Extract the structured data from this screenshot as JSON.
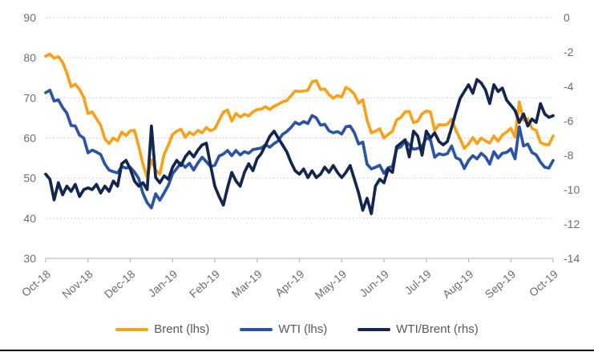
{
  "chart_data": {
    "type": "line",
    "title": "",
    "categories": [
      "Oct-18",
      "Nov-18",
      "Dec-18",
      "Jan-19",
      "Feb-19",
      "Mar-19",
      "Apr-19",
      "May-19",
      "Jun-19",
      "Jul-19",
      "Aug-19",
      "Sep-19",
      "Oct-19"
    ],
    "left_axis": {
      "ticks": [
        30,
        40,
        50,
        60,
        70,
        80,
        90
      ],
      "range": [
        30,
        90
      ]
    },
    "right_axis": {
      "ticks": [
        0,
        -2,
        -4,
        -6,
        -8,
        -10,
        -12,
        -14
      ],
      "range": [
        -14,
        0
      ]
    },
    "grid": "horizontal-dotted",
    "legend_position": "bottom",
    "axis_text_color": "#6e6e6e",
    "grid_color": "#c8c8c8",
    "axis_line_color": "#bfbfbf",
    "series": [
      {
        "name": "Brent (lhs)",
        "axis": "left",
        "color": "#F6A21D",
        "values": [
          80.4,
          80.9,
          79.9,
          80.3,
          78.9,
          76.2,
          72.8,
          73.4,
          72.1,
          70.1,
          66.1,
          66.5,
          64.8,
          63.2,
          59.8,
          58.6,
          60.0,
          59.3,
          61.5,
          60.6,
          61.8,
          61.9,
          57.9,
          53.5,
          50.2,
          54.5,
          52.0,
          51.0,
          55.9,
          58.2,
          60.9,
          61.7,
          62.2,
          60.2,
          61.4,
          60.8,
          61.9,
          61.3,
          62.6,
          61.8,
          62.3,
          64.4,
          66.4,
          67.0,
          64.2,
          66.1,
          65.2,
          65.9,
          65.5,
          66.5,
          67.1,
          67.2,
          67.8,
          67.1,
          67.9,
          68.4,
          69.0,
          69.3,
          70.5,
          71.7,
          71.6,
          71.7,
          71.9,
          74.0,
          74.3,
          72.1,
          72.2,
          70.8,
          69.9,
          70.6,
          70.2,
          72.6,
          72.0,
          70.9,
          68.7,
          69.5,
          64.5,
          61.3,
          61.7,
          62.3,
          60.0,
          60.9,
          61.7,
          64.5,
          65.1,
          66.5,
          66.6,
          63.8,
          64.2,
          66.0,
          66.7,
          66.5,
          61.9,
          63.3,
          63.2,
          63.4,
          64.7,
          61.9,
          59.8,
          57.4,
          58.5,
          60.1,
          58.6,
          60.0,
          59.3,
          58.7,
          60.5,
          59.2,
          60.7,
          61.5,
          62.4,
          60.2,
          69.0,
          64.4,
          64.8,
          62.4,
          61.9,
          58.9,
          58.4,
          58.3,
          60.5
        ]
      },
      {
        "name": "WTI (lhs)",
        "axis": "left",
        "color": "#2D53A5",
        "values": [
          71.3,
          71.9,
          69.2,
          69.5,
          67.6,
          66.2,
          63.1,
          63.0,
          60.7,
          60.0,
          56.3,
          57.0,
          56.5,
          55.9,
          53.5,
          52.0,
          51.6,
          51.3,
          52.9,
          52.5,
          52.7,
          51.5,
          49.9,
          46.2,
          43.9,
          42.6,
          46.1,
          44.5,
          46.3,
          48.2,
          51.1,
          52.4,
          53.8,
          52.7,
          53.7,
          52.0,
          53.8,
          55.2,
          54.1,
          52.9,
          53.2,
          55.5,
          56.0,
          56.9,
          55.6,
          56.9,
          55.8,
          56.6,
          56.2,
          57.1,
          57.3,
          57.5,
          58.3,
          57.7,
          58.6,
          59.3,
          60.9,
          61.6,
          62.6,
          63.9,
          63.4,
          64.1,
          63.6,
          65.6,
          65.0,
          63.2,
          63.4,
          61.8,
          61.3,
          61.6,
          61.0,
          62.8,
          63.0,
          61.3,
          58.5,
          59.0,
          53.5,
          52.3,
          52.7,
          53.2,
          51.2,
          52.6,
          52.9,
          57.3,
          57.8,
          59.3,
          58.3,
          57.2,
          57.4,
          57.8,
          60.1,
          59.5,
          55.2,
          56.1,
          55.8,
          56.1,
          58.0,
          55.1,
          54.6,
          52.4,
          54.4,
          55.6,
          54.8,
          56.2,
          55.3,
          53.5,
          56.6,
          55.0,
          56.2,
          56.4,
          57.3,
          54.8,
          62.8,
          58.0,
          58.5,
          56.4,
          55.8,
          54.0,
          52.7,
          52.5,
          54.4
        ]
      },
      {
        "name": "WTI/Brent (rhs)",
        "axis": "right",
        "color": "#13264D",
        "values": [
          -9.1,
          -9.4,
          -10.6,
          -9.6,
          -10.3,
          -9.8,
          -10.1,
          -9.7,
          -10.4,
          -10.0,
          -9.9,
          -10.0,
          -9.7,
          -10.2,
          -9.8,
          -10.1,
          -9.5,
          -9.8,
          -8.5,
          -8.3,
          -8.8,
          -9.5,
          -9.8,
          -9.6,
          -10.0,
          -6.3,
          -9.3,
          -9.6,
          -9.2,
          -9.4,
          -8.7,
          -8.3,
          -8.6,
          -8.1,
          -7.8,
          -8.1,
          -7.7,
          -7.4,
          -7.3,
          -8.6,
          -9.8,
          -10.4,
          -10.9,
          -9.9,
          -9.0,
          -9.5,
          -9.8,
          -9.0,
          -8.5,
          -8.9,
          -8.2,
          -7.9,
          -7.4,
          -6.9,
          -6.6,
          -7.0,
          -7.4,
          -7.8,
          -8.4,
          -8.9,
          -9.1,
          -8.8,
          -9.3,
          -8.9,
          -9.3,
          -9.1,
          -8.7,
          -9.0,
          -8.6,
          -9.0,
          -9.3,
          -9.0,
          -8.6,
          -9.4,
          -10.2,
          -11.2,
          -10.5,
          -11.4,
          -9.8,
          -9.4,
          -9.6,
          -8.8,
          -9.0,
          -7.5,
          -7.3,
          -7.1,
          -8.1,
          -6.6,
          -6.9,
          -8.0,
          -6.6,
          -7.0,
          -6.7,
          -7.2,
          -7.4,
          -7.2,
          -6.4,
          -5.5,
          -4.7,
          -4.3,
          -3.9,
          -4.4,
          -3.6,
          -3.8,
          -4.2,
          -5.0,
          -3.9,
          -4.3,
          -4.1,
          -4.8,
          -5.1,
          -5.4,
          -6.1,
          -5.6,
          -6.3,
          -5.9,
          -6.1,
          -5.0,
          -5.6,
          -5.8,
          -5.7
        ]
      }
    ],
    "legend": [
      "Brent (lhs)",
      "WTI (lhs)",
      "WTI/Brent (rhs)"
    ]
  }
}
